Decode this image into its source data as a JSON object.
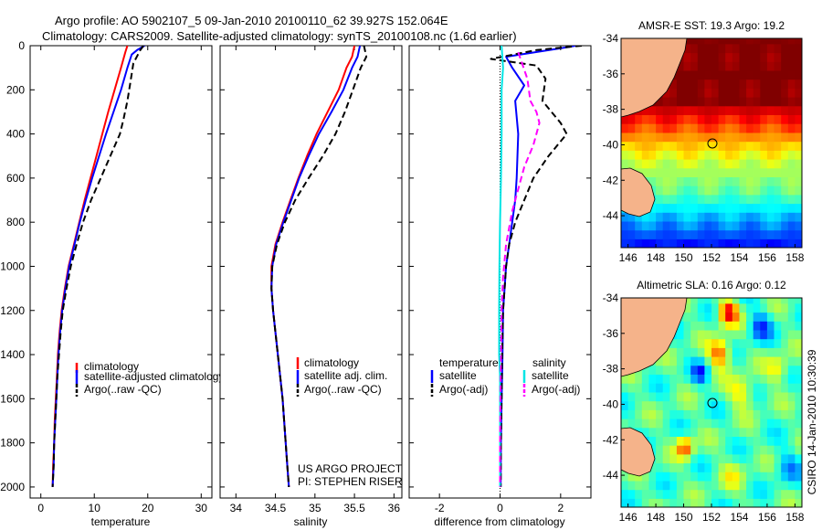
{
  "header": {
    "line1": "Argo profile: AO 5902107_5 09-Jan-2010 20100110_62 39.927S 152.064E",
    "line2": "Climatology: CARS2009. Satellite-adjusted climatology: synTS_20100108.nc (1.6d earlier)"
  },
  "credits": {
    "project_line1": "US ARGO PROJECT",
    "project_line2": "PI: STEPHEN RISER",
    "stamp": "CSIRO 14-Jan-2010 10:30:39"
  },
  "colors": {
    "climatology": "#ff0000",
    "satellite": "#0000ff",
    "argo": "#000000",
    "satellite_salinity": "#00e5e5",
    "argo_salinity": "#ff00ff",
    "land": "#f5b38a"
  },
  "chart_data": [
    {
      "type": "line",
      "id": "temperature",
      "xlabel": "temperature",
      "xlim": [
        -2,
        32
      ],
      "ylim": [
        2050,
        0
      ],
      "xticks": [
        0,
        10,
        20,
        30
      ],
      "yticks": [
        0,
        200,
        400,
        600,
        800,
        1000,
        1200,
        1400,
        1600,
        1800,
        2000
      ],
      "legend": [
        "climatology",
        "satellite-adjusted climatology",
        "Argo(..raw -QC)"
      ],
      "series": [
        {
          "name": "climatology",
          "color": "#ff0000",
          "dash": "solid",
          "points": [
            [
              16.2,
              0
            ],
            [
              15.8,
              30
            ],
            [
              15.0,
              100
            ],
            [
              13.8,
              200
            ],
            [
              12.6,
              300
            ],
            [
              11.5,
              400
            ],
            [
              10.4,
              500
            ],
            [
              9.3,
              600
            ],
            [
              8.2,
              700
            ],
            [
              7.2,
              800
            ],
            [
              6.2,
              900
            ],
            [
              5.2,
              1000
            ],
            [
              4.5,
              1100
            ],
            [
              3.9,
              1200
            ],
            [
              3.5,
              1300
            ],
            [
              3.2,
              1400
            ],
            [
              3.0,
              1500
            ],
            [
              2.8,
              1600
            ],
            [
              2.6,
              1700
            ],
            [
              2.5,
              1800
            ],
            [
              2.3,
              1900
            ],
            [
              2.2,
              2000
            ]
          ]
        },
        {
          "name": "satellite-adjusted climatology",
          "color": "#0000ff",
          "dash": "solid",
          "points": [
            [
              19.4,
              0
            ],
            [
              18.0,
              20
            ],
            [
              17.0,
              40
            ],
            [
              16.2,
              100
            ],
            [
              15.0,
              200
            ],
            [
              13.6,
              300
            ],
            [
              12.2,
              400
            ],
            [
              10.9,
              500
            ],
            [
              9.6,
              600
            ],
            [
              8.4,
              700
            ],
            [
              7.3,
              800
            ],
            [
              6.3,
              900
            ],
            [
              5.3,
              1000
            ],
            [
              4.6,
              1100
            ],
            [
              4.0,
              1200
            ],
            [
              3.6,
              1300
            ],
            [
              3.3,
              1400
            ],
            [
              3.1,
              1500
            ],
            [
              2.9,
              1600
            ],
            [
              2.7,
              1700
            ],
            [
              2.5,
              1800
            ],
            [
              2.4,
              1900
            ],
            [
              2.2,
              2000
            ]
          ]
        },
        {
          "name": "Argo(..raw -QC)",
          "color": "#000000",
          "dash": "dashed",
          "points": [
            [
              19.2,
              0
            ],
            [
              18.6,
              20
            ],
            [
              17.3,
              80
            ],
            [
              16.8,
              160
            ],
            [
              16.2,
              250
            ],
            [
              15.5,
              330
            ],
            [
              14.8,
              400
            ],
            [
              13.0,
              500
            ],
            [
              11.2,
              600
            ],
            [
              9.4,
              700
            ],
            [
              7.9,
              800
            ],
            [
              6.7,
              900
            ],
            [
              5.6,
              1000
            ],
            [
              4.8,
              1100
            ],
            [
              4.1,
              1200
            ],
            [
              3.7,
              1300
            ],
            [
              3.4,
              1400
            ],
            [
              3.1,
              1500
            ],
            [
              2.9,
              1600
            ],
            [
              2.7,
              1700
            ],
            [
              2.5,
              1800
            ],
            [
              2.4,
              1900
            ],
            [
              2.2,
              2000
            ]
          ]
        }
      ]
    },
    {
      "type": "line",
      "id": "salinity",
      "xlabel": "salinity",
      "xlim": [
        33.8,
        36.1
      ],
      "ylim": [
        2050,
        0
      ],
      "xticks": [
        34,
        34.5,
        35,
        35.5,
        36
      ],
      "yticks": [],
      "legend": [
        "climatology",
        "satellite adj. clim.",
        "Argo(..raw -QC)"
      ],
      "series": [
        {
          "name": "climatology",
          "color": "#ff0000",
          "dash": "solid",
          "points": [
            [
              35.5,
              0
            ],
            [
              35.47,
              50
            ],
            [
              35.4,
              100
            ],
            [
              35.3,
              200
            ],
            [
              35.16,
              300
            ],
            [
              35.02,
              400
            ],
            [
              34.9,
              500
            ],
            [
              34.79,
              600
            ],
            [
              34.69,
              700
            ],
            [
              34.59,
              800
            ],
            [
              34.5,
              900
            ],
            [
              34.45,
              1000
            ],
            [
              34.45,
              1100
            ],
            [
              34.47,
              1200
            ],
            [
              34.5,
              1300
            ],
            [
              34.53,
              1400
            ],
            [
              34.56,
              1500
            ],
            [
              34.59,
              1600
            ],
            [
              34.61,
              1700
            ],
            [
              34.63,
              1800
            ],
            [
              34.65,
              1900
            ],
            [
              34.67,
              2000
            ]
          ]
        },
        {
          "name": "satellite adj. clim.",
          "color": "#0000ff",
          "dash": "solid",
          "points": [
            [
              35.57,
              0
            ],
            [
              35.54,
              50
            ],
            [
              35.47,
              100
            ],
            [
              35.36,
              200
            ],
            [
              35.21,
              300
            ],
            [
              35.05,
              400
            ],
            [
              34.92,
              500
            ],
            [
              34.8,
              600
            ],
            [
              34.7,
              700
            ],
            [
              34.6,
              800
            ],
            [
              34.51,
              900
            ],
            [
              34.46,
              1000
            ],
            [
              34.45,
              1100
            ],
            [
              34.47,
              1200
            ],
            [
              34.5,
              1300
            ],
            [
              34.53,
              1400
            ],
            [
              34.56,
              1500
            ],
            [
              34.59,
              1600
            ],
            [
              34.61,
              1700
            ],
            [
              34.63,
              1800
            ],
            [
              34.65,
              1900
            ],
            [
              34.67,
              2000
            ]
          ]
        },
        {
          "name": "Argo(..raw -QC)",
          "color": "#000000",
          "dash": "dashed",
          "points": [
            [
              35.62,
              0
            ],
            [
              35.65,
              50
            ],
            [
              35.58,
              100
            ],
            [
              35.48,
              200
            ],
            [
              35.38,
              300
            ],
            [
              35.26,
              400
            ],
            [
              35.1,
              500
            ],
            [
              34.92,
              600
            ],
            [
              34.75,
              700
            ],
            [
              34.62,
              800
            ],
            [
              34.52,
              900
            ],
            [
              34.46,
              1000
            ],
            [
              34.45,
              1100
            ],
            [
              34.47,
              1200
            ],
            [
              34.5,
              1300
            ],
            [
              34.53,
              1400
            ],
            [
              34.56,
              1500
            ],
            [
              34.59,
              1600
            ],
            [
              34.61,
              1700
            ],
            [
              34.63,
              1800
            ],
            [
              34.65,
              1900
            ],
            [
              34.67,
              2000
            ]
          ]
        }
      ]
    },
    {
      "type": "line",
      "id": "difference",
      "xlabel": "difference from climatology",
      "xlim": [
        -3,
        3
      ],
      "ylim": [
        2050,
        0
      ],
      "xticks": [
        -2,
        0,
        2
      ],
      "yticks": [],
      "legend_groups": {
        "temperature": {
          "title": "temperature",
          "items": [
            "satellite",
            "Argo(-adj)"
          ]
        },
        "salinity": {
          "title": "salinity",
          "items": [
            "satellite",
            "Argo(-adj)"
          ]
        }
      },
      "series": [
        {
          "name": "temperature satellite",
          "color": "#0000ff",
          "dash": "solid",
          "points": [
            [
              2.5,
              0
            ],
            [
              2.3,
              5
            ],
            [
              0.2,
              50
            ],
            [
              0.4,
              100
            ],
            [
              0.8,
              180
            ],
            [
              0.5,
              250
            ],
            [
              0.6,
              400
            ],
            [
              0.55,
              600
            ],
            [
              0.5,
              700
            ],
            [
              0.4,
              800
            ],
            [
              0.3,
              900
            ],
            [
              0.2,
              1000
            ],
            [
              0.15,
              1100
            ],
            [
              0.1,
              1200
            ],
            [
              0.08,
              1400
            ],
            [
              0.05,
              1600
            ],
            [
              0.03,
              1800
            ],
            [
              0.02,
              2000
            ]
          ]
        },
        {
          "name": "temperature Argo(-adj)",
          "color": "#000000",
          "dash": "dashed",
          "points": [
            [
              2.7,
              0
            ],
            [
              1.2,
              20
            ],
            [
              -0.3,
              60
            ],
            [
              1.2,
              90
            ],
            [
              1.5,
              150
            ],
            [
              1.4,
              250
            ],
            [
              2.0,
              350
            ],
            [
              2.2,
              400
            ],
            [
              1.6,
              500
            ],
            [
              1.1,
              600
            ],
            [
              0.8,
              700
            ],
            [
              0.5,
              800
            ],
            [
              0.3,
              900
            ],
            [
              0.2,
              1000
            ],
            [
              0.15,
              1100
            ],
            [
              0.1,
              1200
            ],
            [
              0.07,
              1400
            ],
            [
              0.05,
              1600
            ],
            [
              0.03,
              1800
            ],
            [
              0.02,
              2000
            ]
          ]
        },
        {
          "name": "salinity satellite",
          "color": "#00e5e5",
          "dash": "solid",
          "points": [
            [
              0.05,
              0
            ],
            [
              0.1,
              100
            ],
            [
              0.05,
              200
            ],
            [
              0.05,
              400
            ],
            [
              0.03,
              600
            ],
            [
              0.0,
              800
            ],
            [
              -0.02,
              1000
            ],
            [
              -0.03,
              1200
            ],
            [
              -0.03,
              1400
            ],
            [
              0.0,
              1500
            ],
            [
              0.0,
              1700
            ],
            [
              0.0,
              2000
            ]
          ]
        },
        {
          "name": "salinity Argo(-adj)",
          "color": "#ff00ff",
          "dash": "dashed",
          "points": [
            [
              0.6,
              30
            ],
            [
              0.9,
              150
            ],
            [
              1.0,
              250
            ],
            [
              1.2,
              300
            ],
            [
              1.3,
              350
            ],
            [
              1.1,
              450
            ],
            [
              0.8,
              550
            ],
            [
              0.6,
              650
            ],
            [
              0.4,
              750
            ],
            [
              0.2,
              900
            ],
            [
              0.1,
              1050
            ],
            [
              0.05,
              1200
            ],
            [
              0.02,
              1500
            ],
            [
              0.0,
              1800
            ],
            [
              0.0,
              2000
            ]
          ]
        }
      ]
    },
    {
      "type": "heatmap",
      "id": "sst-map",
      "title": "AMSR-E SST: 19.3 Argo: 19.2",
      "xlim": [
        145.5,
        158.5
      ],
      "ylim": [
        -45.8,
        -34
      ],
      "xticks": [
        146,
        148,
        150,
        152,
        154,
        156,
        158
      ],
      "yticks": [
        -34,
        -36,
        -38,
        -40,
        -42,
        -44
      ],
      "profile_location": {
        "lon": 152.064,
        "lat": -39.927
      },
      "colormap": "jet"
    },
    {
      "type": "heatmap",
      "id": "sla-map",
      "title": "Altimetric SLA: 0.16 Argo: 0.12",
      "xlim": [
        145.5,
        158.5
      ],
      "ylim": [
        -45.8,
        -34
      ],
      "xticks": [
        146,
        148,
        150,
        152,
        154,
        156,
        158
      ],
      "yticks": [
        -34,
        -36,
        -38,
        -40,
        -42,
        -44
      ],
      "profile_location": {
        "lon": 152.064,
        "lat": -39.927
      },
      "colormap": "jet"
    }
  ]
}
